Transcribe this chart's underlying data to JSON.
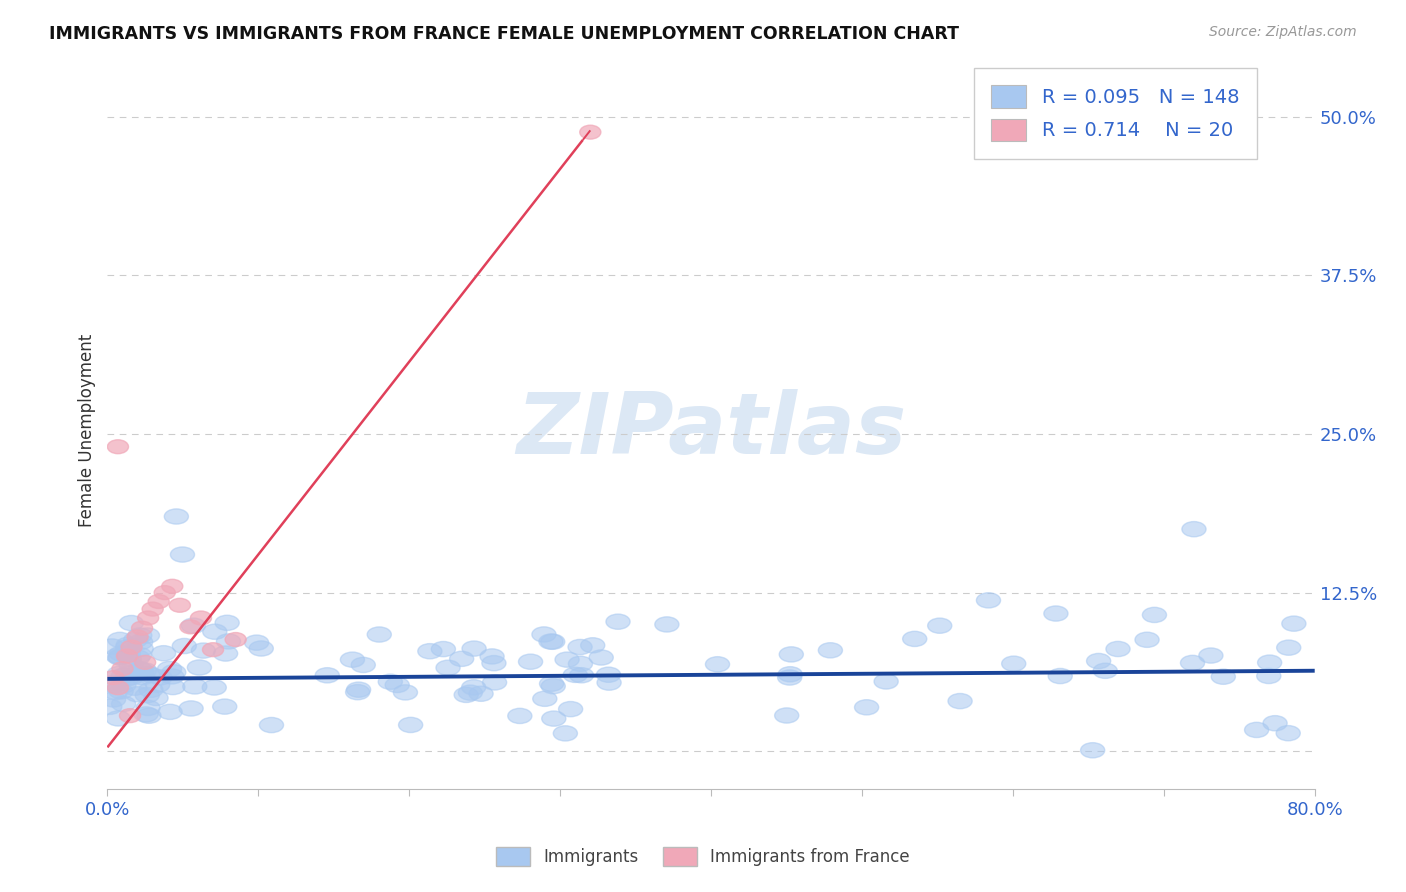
{
  "title": "IMMIGRANTS VS IMMIGRANTS FROM FRANCE FEMALE UNEMPLOYMENT CORRELATION CHART",
  "source_text": "Source: ZipAtlas.com",
  "ylabel": "Female Unemployment",
  "xlim": [
    0.0,
    0.8
  ],
  "ylim": [
    -0.03,
    0.535
  ],
  "yticks": [
    0.0,
    0.125,
    0.25,
    0.375,
    0.5
  ],
  "ytick_labels": [
    "",
    "12.5%",
    "25.0%",
    "37.5%",
    "50.0%"
  ],
  "blue_R": 0.095,
  "blue_N": 148,
  "pink_R": 0.714,
  "pink_N": 20,
  "blue_color": "#a8c8f0",
  "pink_color": "#f0a8b8",
  "blue_line_color": "#1a4499",
  "pink_line_color": "#e0405a",
  "legend_text_color": "#3366cc",
  "title_color": "#111111",
  "watermark_color": "#dce8f5",
  "background_color": "#ffffff",
  "grid_color": "#cccccc",
  "blue_trend_slope": 0.008,
  "blue_trend_intercept": 0.057,
  "pink_trend_slope": 1.52,
  "pink_trend_intercept": 0.003,
  "pink_trend_x_start": 0.0,
  "pink_trend_x_end": 0.315
}
